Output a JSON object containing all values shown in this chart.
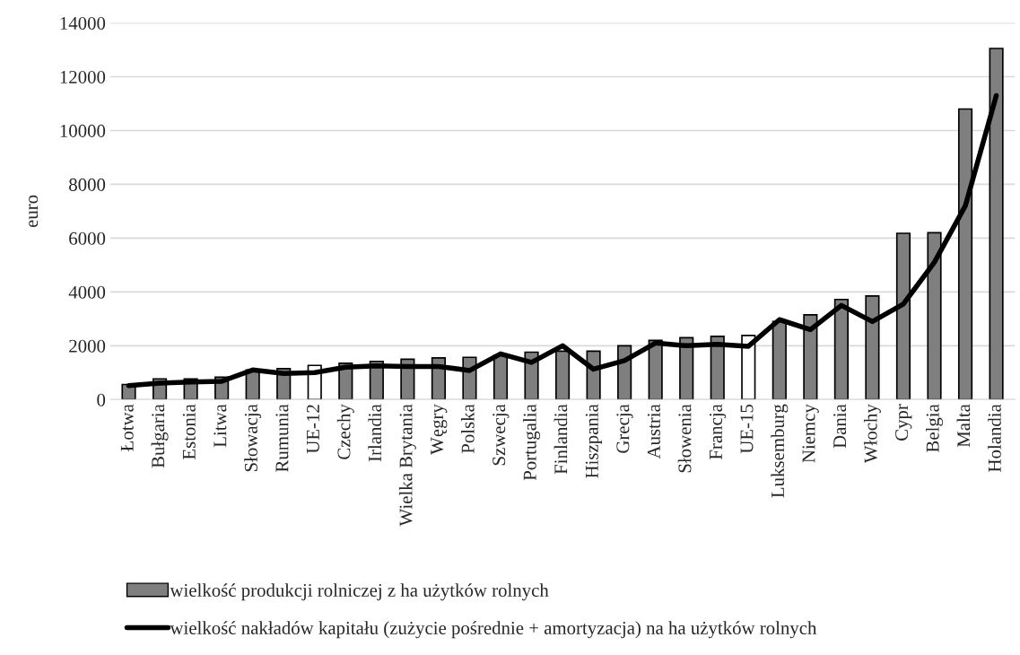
{
  "chart_data": {
    "type": "bar",
    "ylabel": "euro",
    "categories": [
      "Łotwa",
      "Bułgaria",
      "Estonia",
      "Litwa",
      "Słowacja",
      "Rumunia",
      "UE-12",
      "Czechy",
      "Irlandia",
      "Wielka Brytania",
      "Węgry",
      "Polska",
      "Szwecja",
      "Portugalia",
      "Finlandia",
      "Hiszpania",
      "Grecja",
      "Austria",
      "Słowenia",
      "Francja",
      "UE-15",
      "Luksemburg",
      "Niemcy",
      "Dania",
      "Włochy",
      "Cypr",
      "Belgia",
      "Malta",
      "Holandia"
    ],
    "series": [
      {
        "name": "wielkość produkcji rolniczej z ha użytków rolnych",
        "color": "#7f7f7f",
        "colors": [
          "#7f7f7f",
          "#7f7f7f",
          "#7f7f7f",
          "#7f7f7f",
          "#7f7f7f",
          "#7f7f7f",
          "#ffffff",
          "#7f7f7f",
          "#7f7f7f",
          "#7f7f7f",
          "#7f7f7f",
          "#7f7f7f",
          "#7f7f7f",
          "#7f7f7f",
          "#7f7f7f",
          "#7f7f7f",
          "#7f7f7f",
          "#7f7f7f",
          "#7f7f7f",
          "#7f7f7f",
          "#ffffff",
          "#7f7f7f",
          "#7f7f7f",
          "#7f7f7f",
          "#7f7f7f",
          "#7f7f7f",
          "#7f7f7f",
          "#7f7f7f",
          "#7f7f7f"
        ],
        "values": [
          560,
          770,
          770,
          830,
          1100,
          1150,
          1270,
          1350,
          1420,
          1500,
          1550,
          1570,
          1650,
          1760,
          1800,
          1800,
          2000,
          2200,
          2300,
          2350,
          2380,
          2900,
          3150,
          3720,
          3850,
          6180,
          6200,
          10800,
          13050
        ]
      },
      {
        "name": "wielkość nakładów kapitału (zużycie pośrednie + amortyzacja) na ha użytków rolnych",
        "type": "line",
        "color": "#000000",
        "values": [
          520,
          610,
          650,
          680,
          1100,
          970,
          1000,
          1200,
          1250,
          1230,
          1230,
          1080,
          1700,
          1380,
          2000,
          1130,
          1450,
          2100,
          2000,
          2050,
          1980,
          2970,
          2600,
          3500,
          2900,
          3550,
          5100,
          7200,
          11300
        ]
      }
    ],
    "ylim": [
      0,
      14000
    ],
    "yticks": [
      0,
      2000,
      4000,
      6000,
      8000,
      10000,
      12000,
      14000
    ],
    "grid": "y",
    "legend": "bottom",
    "marker": "none",
    "line_style": "solid"
  }
}
